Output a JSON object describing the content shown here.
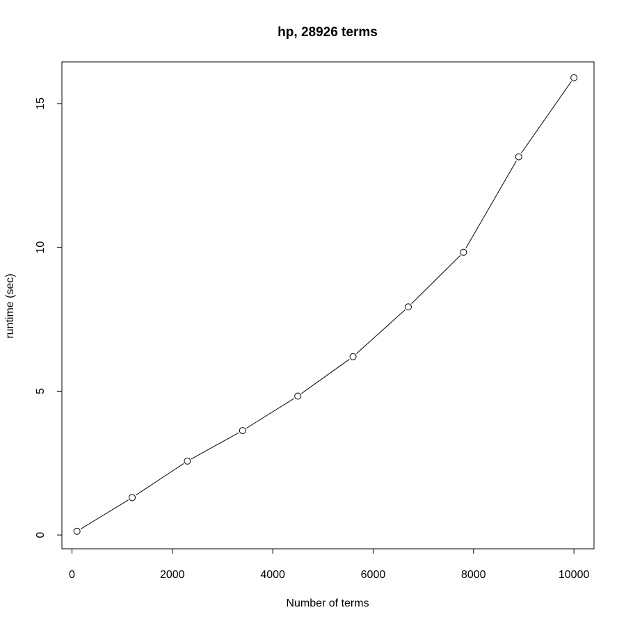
{
  "chart_data": {
    "type": "line",
    "title": "hp, 28926 terms",
    "xlabel": "Number of terms",
    "ylabel": "runtime (sec)",
    "x": [
      100,
      1200,
      2300,
      3400,
      4500,
      5600,
      6700,
      7800,
      8900,
      10000
    ],
    "series": [
      {
        "values": [
          0.13,
          1.3,
          2.57,
          3.63,
          4.83,
          6.2,
          7.93,
          9.83,
          13.15,
          15.9
        ]
      }
    ],
    "xlim": [
      -200,
      10400
    ],
    "ylim": [
      -0.48,
      16.45
    ],
    "xticks": [
      0,
      2000,
      4000,
      6000,
      8000,
      10000
    ],
    "yticks": [
      0,
      5,
      10,
      15
    ],
    "xtick_labels": [
      "0",
      "2000",
      "4000",
      "6000",
      "8000",
      "10000"
    ],
    "ytick_labels": [
      "0",
      "5",
      "10",
      "15"
    ],
    "marker": "open-circle",
    "color": "#000000",
    "grid": false,
    "legend": "none"
  }
}
